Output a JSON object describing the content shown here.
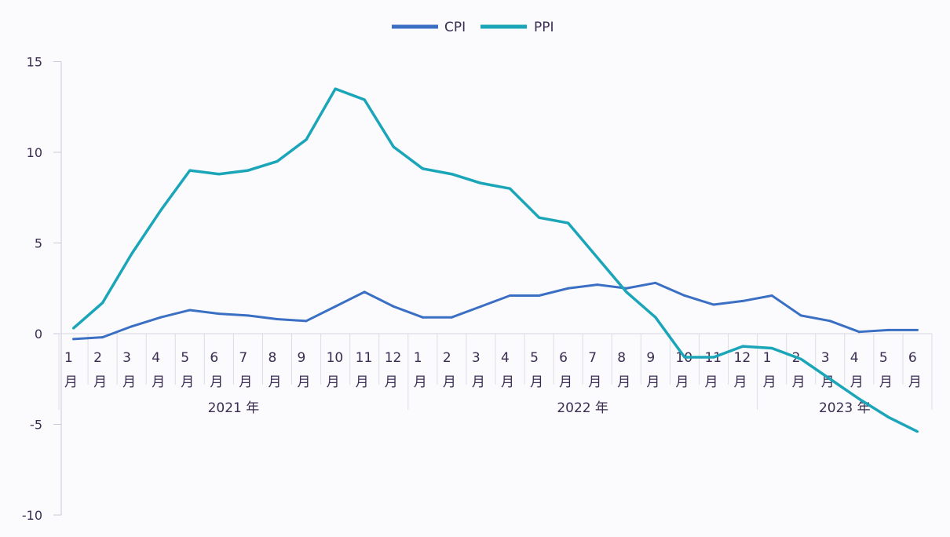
{
  "chart_data": {
    "type": "line",
    "title": "",
    "xlabel": "",
    "ylabel": "",
    "ylim": [
      -10,
      15
    ],
    "yticks": [
      "15",
      "10",
      "5",
      "0",
      "-5",
      "-10"
    ],
    "ytick_values": [
      15,
      10,
      5,
      0,
      -5,
      -10
    ],
    "legend_position": "top-center",
    "grid": false,
    "month_labels": [
      "1",
      "2",
      "3",
      "4",
      "5",
      "6",
      "7",
      "8",
      "9",
      "10",
      "11",
      "12",
      "1",
      "2",
      "3",
      "4",
      "5",
      "6",
      "7",
      "8",
      "9",
      "10",
      "11",
      "12",
      "1",
      "2",
      "3",
      "4",
      "5",
      "6"
    ],
    "month_suffix": "月",
    "years": [
      {
        "label": "2021 年",
        "months": 12
      },
      {
        "label": "2022 年",
        "months": 12
      },
      {
        "label": "2023 年",
        "months": 6
      }
    ],
    "series": [
      {
        "name": "CPI",
        "color": "#3a6fc4",
        "values": [
          -0.3,
          -0.2,
          0.4,
          0.9,
          1.3,
          1.1,
          1.0,
          0.8,
          0.7,
          1.5,
          2.3,
          1.5,
          0.9,
          0.9,
          1.5,
          2.1,
          2.1,
          2.5,
          2.7,
          2.5,
          2.8,
          2.1,
          1.6,
          1.8,
          2.1,
          1.0,
          0.7,
          0.1,
          0.2,
          0.2
        ]
      },
      {
        "name": "PPI",
        "color": "#1aa5b8",
        "values": [
          0.3,
          1.7,
          4.4,
          6.8,
          9.0,
          8.8,
          9.0,
          9.5,
          10.7,
          13.5,
          12.9,
          10.3,
          9.1,
          8.8,
          8.3,
          8.0,
          6.4,
          6.1,
          4.2,
          2.3,
          0.9,
          -1.3,
          -1.3,
          -0.7,
          -0.8,
          -1.4,
          -2.5,
          -3.6,
          -4.6,
          -5.4
        ]
      }
    ]
  }
}
